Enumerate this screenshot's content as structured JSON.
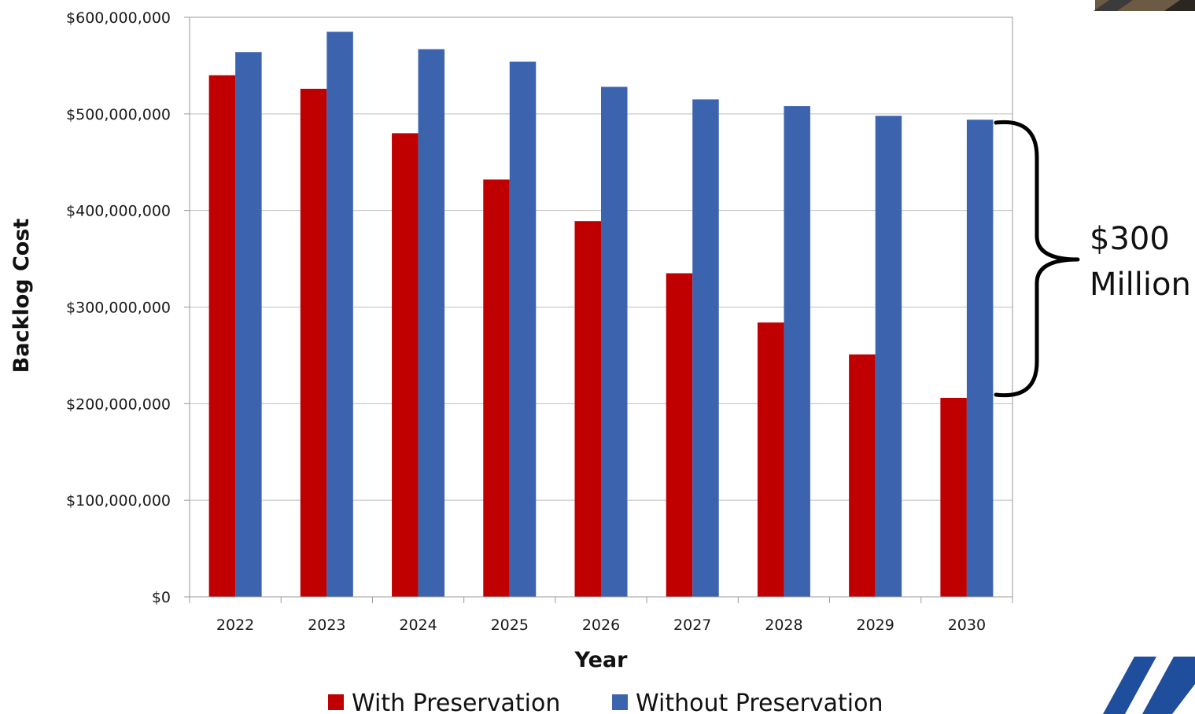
{
  "colors": {
    "with_preservation": "#C00000",
    "without_preservation": "#3C64AE",
    "gridline": "#BEBEBE",
    "axis": "#9A9A9A",
    "logo": "#1F4E9C"
  },
  "annotation": {
    "line1": "$300",
    "line2": "Million"
  },
  "decorations": {
    "top_right_photo": "photo-thumbnail",
    "bottom_right_logo": "agency-logo"
  },
  "chart_data": {
    "type": "bar",
    "title": "",
    "xlabel": "Year",
    "ylabel": "Backlog Cost",
    "categories": [
      "2022",
      "2023",
      "2024",
      "2025",
      "2026",
      "2027",
      "2028",
      "2029",
      "2030"
    ],
    "series": [
      {
        "name": "With Preservation",
        "values": [
          540000000,
          526000000,
          480000000,
          432000000,
          389000000,
          335000000,
          284000000,
          251000000,
          206000000
        ]
      },
      {
        "name": "Without Preservation",
        "values": [
          564000000,
          585000000,
          567000000,
          554000000,
          528000000,
          515000000,
          508000000,
          498000000,
          494000000
        ]
      }
    ],
    "ylim": [
      0,
      600000000
    ],
    "yticks": [
      0,
      100000000,
      200000000,
      300000000,
      400000000,
      500000000,
      600000000
    ],
    "ytick_labels": [
      "$0",
      "$100,000,000",
      "$200,000,000",
      "$300,000,000",
      "$400,000,000",
      "$500,000,000",
      "$600,000,000"
    ],
    "grid": true,
    "legend_position": "bottom"
  }
}
